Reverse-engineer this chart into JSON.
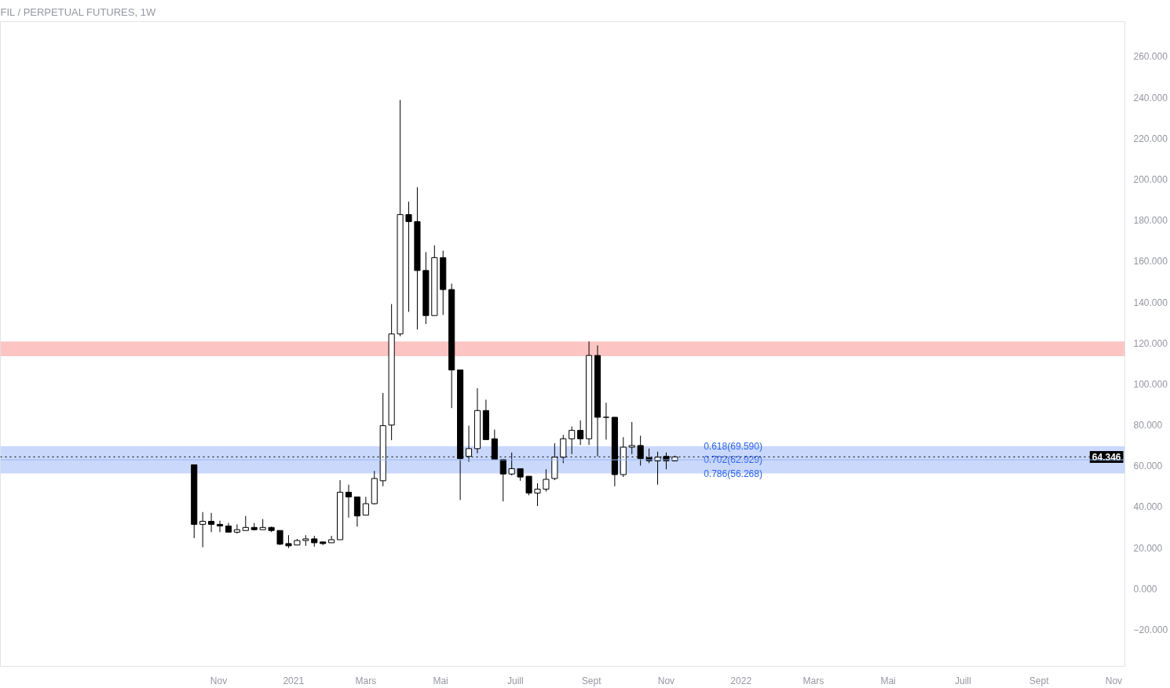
{
  "chart_data": {
    "type": "candlestick",
    "title": "FIL / PERPETUAL FUTURES, 1W",
    "x": [
      "2020-10-12",
      "2020-10-19",
      "2020-10-26",
      "2020-11-02",
      "2020-11-09",
      "2020-11-16",
      "2020-11-23",
      "2020-11-30",
      "2020-12-07",
      "2020-12-14",
      "2020-12-21",
      "2020-12-28",
      "2021-01-04",
      "2021-01-11",
      "2021-01-18",
      "2021-01-25",
      "2021-02-01",
      "2021-02-08",
      "2021-02-15",
      "2021-02-22",
      "2021-03-01",
      "2021-03-08",
      "2021-03-15",
      "2021-03-22",
      "2021-03-29",
      "2021-04-05",
      "2021-04-12",
      "2021-04-19",
      "2021-04-26",
      "2021-05-03",
      "2021-05-10",
      "2021-05-17",
      "2021-05-24",
      "2021-05-31",
      "2021-06-07",
      "2021-06-14",
      "2021-06-21",
      "2021-06-28",
      "2021-07-05",
      "2021-07-12",
      "2021-07-19",
      "2021-07-26",
      "2021-08-02",
      "2021-08-09",
      "2021-08-16",
      "2021-08-23",
      "2021-08-30",
      "2021-09-06",
      "2021-09-13",
      "2021-09-20",
      "2021-09-27",
      "2021-10-04",
      "2021-10-11",
      "2021-10-18",
      "2021-10-25",
      "2021-11-01",
      "2021-11-08"
    ],
    "ohlc": [
      [
        60.5,
        60.5,
        24.7,
        31.4
      ],
      [
        31.4,
        37.4,
        20.2,
        32.9
      ],
      [
        32.9,
        37,
        27.6,
        31.4
      ],
      [
        31.4,
        33.2,
        27.6,
        30.6
      ],
      [
        30.6,
        32.1,
        27.6,
        27.6
      ],
      [
        27.6,
        31.4,
        26.9,
        28.8
      ],
      [
        28.4,
        35.5,
        28.4,
        29.9
      ],
      [
        29.9,
        32.1,
        28.4,
        28.8
      ],
      [
        28.8,
        34,
        28.8,
        29.9
      ],
      [
        29.9,
        30.3,
        27.6,
        28.4
      ],
      [
        28.4,
        28.4,
        21.3,
        21.7
      ],
      [
        22,
        26.1,
        19.8,
        20.9
      ],
      [
        21.3,
        24.3,
        21.3,
        23.5
      ],
      [
        23.5,
        26.1,
        20.9,
        24.3
      ],
      [
        24.3,
        25.8,
        20.5,
        22.4
      ],
      [
        22.8,
        22.8,
        21.3,
        22
      ],
      [
        22.4,
        25.8,
        22.4,
        23.9
      ],
      [
        23.9,
        53,
        23.9,
        47.1
      ],
      [
        47.1,
        50.8,
        34.7,
        44.8
      ],
      [
        44.8,
        44.8,
        30.3,
        35.5
      ],
      [
        35.9,
        44.8,
        35.9,
        41.5
      ],
      [
        41.5,
        57.5,
        41.1,
        53.8
      ],
      [
        52.7,
        95.6,
        50,
        79.6
      ],
      [
        79.9,
        139,
        72.5,
        124.4
      ],
      [
        124.4,
        238.7,
        123.3,
        182.7
      ],
      [
        182.7,
        189,
        135.2,
        179.3
      ],
      [
        179.3,
        196.1,
        126.6,
        155.4
      ],
      [
        155.4,
        164.4,
        129.3,
        133.4
      ],
      [
        133.4,
        167.7,
        133.4,
        161.7
      ],
      [
        161.7,
        165.1,
        133.7,
        146.1
      ],
      [
        146.1,
        149,
        88.2,
        106.8
      ],
      [
        106.8,
        106.8,
        43.3,
        63.5
      ],
      [
        64.6,
        79.6,
        62,
        68.4
      ],
      [
        68.4,
        97.9,
        66.1,
        87
      ],
      [
        87,
        92.3,
        72.8,
        72.8
      ],
      [
        73.2,
        77.7,
        63.1,
        63.1
      ],
      [
        63.1,
        63.1,
        42.6,
        56
      ],
      [
        56,
        66.5,
        55.3,
        58.6
      ],
      [
        58.6,
        58.6,
        52.7,
        54.5
      ],
      [
        54.9,
        54.9,
        45.6,
        46.7
      ],
      [
        46.7,
        51.5,
        40.3,
        48.6
      ],
      [
        48.6,
        58.3,
        47.4,
        53.4
      ],
      [
        53.8,
        71,
        53,
        64.2
      ],
      [
        64.2,
        75.1,
        61.3,
        73.2
      ],
      [
        73.2,
        79.2,
        65.7,
        77.3
      ],
      [
        77.3,
        82.2,
        70.2,
        73.2
      ],
      [
        73.2,
        120.7,
        70.2,
        113.9
      ],
      [
        113.9,
        118.8,
        64.6,
        83.7
      ],
      [
        83.7,
        90.8,
        72.8,
        83.7
      ],
      [
        83.7,
        83.7,
        50,
        55.7
      ],
      [
        55.7,
        74,
        54.5,
        69.1
      ],
      [
        69.1,
        81.4,
        65.7,
        69.9
      ],
      [
        69.9,
        74.7,
        60.1,
        63.5
      ],
      [
        63.9,
        68.4,
        61.3,
        62.4
      ],
      [
        62.4,
        66.9,
        50.8,
        64.2
      ],
      [
        64.6,
        66.5,
        58.3,
        62.4
      ],
      [
        62.4,
        65,
        62.4,
        64.346
      ]
    ],
    "xlim": [
      "2020-05-07",
      "2022-11-10"
    ],
    "xticks": [
      {
        "value": "2020-11-01",
        "label": "Nov"
      },
      {
        "value": "2021-01-01",
        "label": "2021"
      },
      {
        "value": "2021-03-01",
        "label": "Mars"
      },
      {
        "value": "2021-05-01",
        "label": "Mai"
      },
      {
        "value": "2021-07-01",
        "label": "Juill"
      },
      {
        "value": "2021-09-01",
        "label": "Sept"
      },
      {
        "value": "2021-11-01",
        "label": "Nov"
      },
      {
        "value": "2022-01-01",
        "label": "2022"
      },
      {
        "value": "2022-03-01",
        "label": "Mars"
      },
      {
        "value": "2022-05-01",
        "label": "Mai"
      },
      {
        "value": "2022-07-01",
        "label": "Juill"
      },
      {
        "value": "2022-09-01",
        "label": "Sept"
      },
      {
        "value": "2022-11-01",
        "label": "Nov"
      }
    ],
    "ylim": [
      -38,
      277
    ],
    "yticks": [
      {
        "value": -20,
        "label": "−20.000"
      },
      {
        "value": 0,
        "label": "0.000"
      },
      {
        "value": 20,
        "label": "20.000"
      },
      {
        "value": 40,
        "label": "40.000"
      },
      {
        "value": 60,
        "label": "60.000"
      },
      {
        "value": 80,
        "label": "80.000"
      },
      {
        "value": 100,
        "label": "100.000"
      },
      {
        "value": 120,
        "label": "120.000"
      },
      {
        "value": 140,
        "label": "140.000"
      },
      {
        "value": 160,
        "label": "160.000"
      },
      {
        "value": 180,
        "label": "180.000"
      },
      {
        "value": 200,
        "label": "200.000"
      },
      {
        "value": 220,
        "label": "220.000"
      },
      {
        "value": 240,
        "label": "240.000"
      },
      {
        "value": 260,
        "label": "260.000"
      }
    ],
    "bands": [
      {
        "axis": "y",
        "from": 113.6,
        "to": 120.7,
        "color": "#fcc5c3"
      },
      {
        "axis": "y",
        "from": 56.268,
        "to": 69.59,
        "color": "#c9d8fb"
      }
    ],
    "ref_lines": [
      {
        "axis": "y",
        "value": 64.346,
        "label": "64.346",
        "color": "#000000",
        "line_style": "dotted"
      },
      {
        "axis": "y",
        "value": 62.929,
        "color": "#9bb8f5",
        "line_style": "solid"
      }
    ],
    "annotations": [
      {
        "text": "0.618(69.590)",
        "x": "2021-11-29",
        "y": 69.59
      },
      {
        "text": "0.702(62.929)",
        "x": "2021-11-29",
        "y": 62.929
      },
      {
        "text": "0.786(56.268)",
        "x": "2021-11-29",
        "y": 56.268
      }
    ],
    "grid": false
  }
}
